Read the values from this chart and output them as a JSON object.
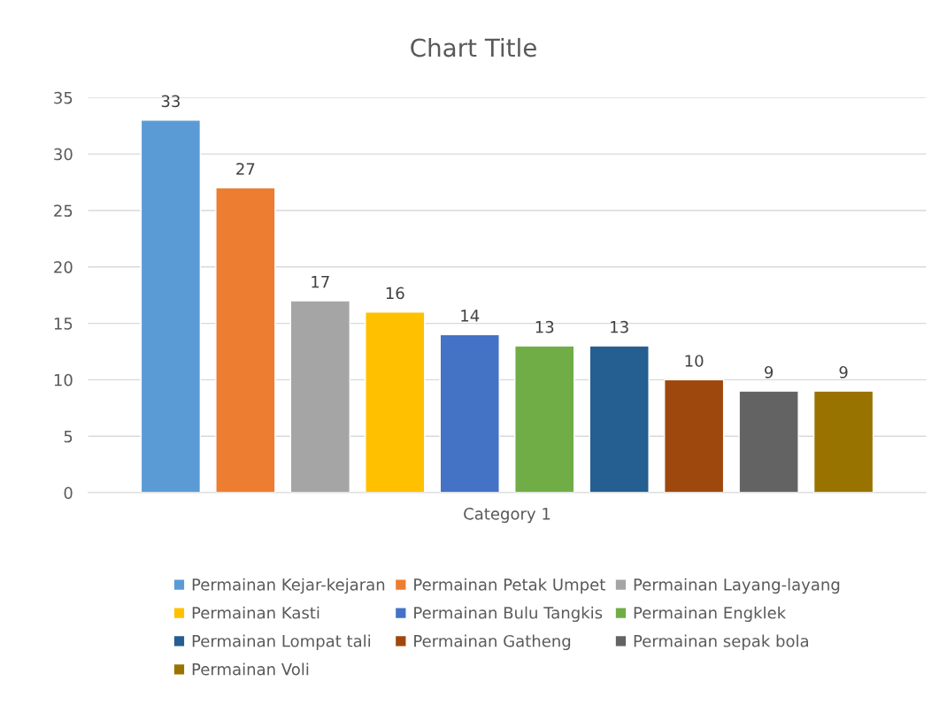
{
  "chart_data": {
    "type": "bar",
    "title": "Chart Title",
    "categories": [
      "Category 1"
    ],
    "series": [
      {
        "name": "Permainan Kejar-kejaran",
        "color": "#5b9bd5",
        "values": [
          33
        ]
      },
      {
        "name": "Permainan Petak Umpet",
        "color": "#ed7d31",
        "values": [
          27
        ]
      },
      {
        "name": "Permainan Layang-layang",
        "color": "#a5a5a5",
        "values": [
          17
        ]
      },
      {
        "name": "Permainan Kasti",
        "color": "#ffc000",
        "values": [
          16
        ]
      },
      {
        "name": "Permainan Bulu Tangkis",
        "color": "#4472c4",
        "values": [
          14
        ]
      },
      {
        "name": "Permainan Engklek",
        "color": "#70ad47",
        "values": [
          13
        ]
      },
      {
        "name": "Permainan Lompat tali",
        "color": "#255e91",
        "values": [
          13
        ]
      },
      {
        "name": "Permainan Gatheng",
        "color": "#9e480e",
        "values": [
          10
        ]
      },
      {
        "name": "Permainan sepak bola",
        "color": "#636363",
        "values": [
          9
        ]
      },
      {
        "name": "Permainan Voli",
        "color": "#997300",
        "values": [
          9
        ]
      }
    ],
    "ylim": [
      0,
      35
    ],
    "yticks": [
      0,
      5,
      10,
      15,
      20,
      25,
      30,
      35
    ],
    "grid": "y",
    "legend": "bottom",
    "data_labels": true
  }
}
